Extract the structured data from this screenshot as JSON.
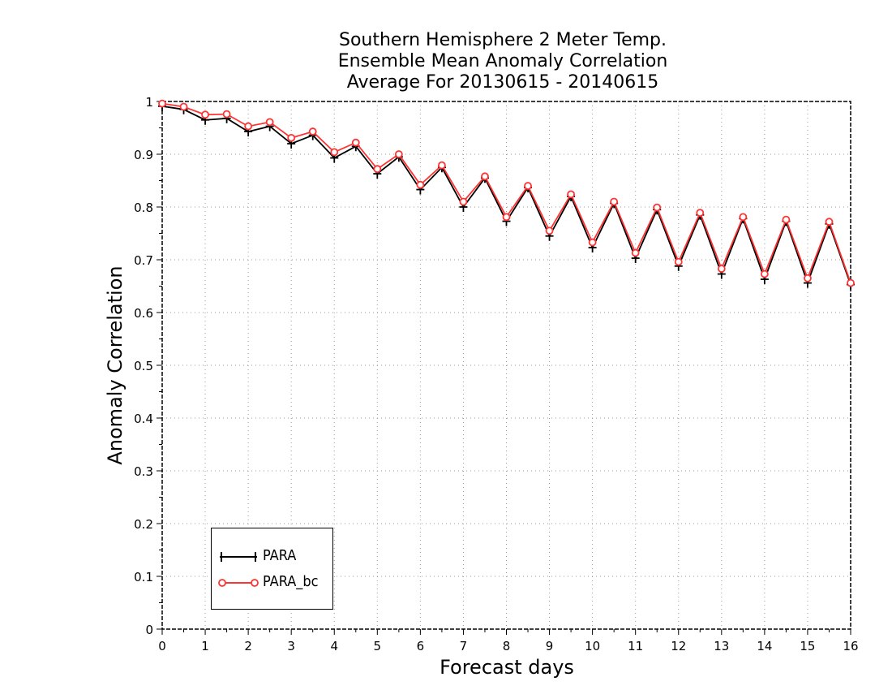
{
  "chart_data": {
    "type": "line",
    "title_lines": [
      "Southern Hemisphere 2 Meter Temp.",
      "Ensemble Mean Anomaly Correlation",
      "Average For 20130615 - 20140615"
    ],
    "xlabel": "Forecast days",
    "ylabel": "Anomaly Correlation",
    "xlim": [
      0,
      16
    ],
    "ylim": [
      0,
      1
    ],
    "x_ticks": [
      "0",
      "1",
      "2",
      "3",
      "4",
      "5",
      "6",
      "7",
      "8",
      "9",
      "10",
      "11",
      "12",
      "13",
      "14",
      "15",
      "16"
    ],
    "y_ticks": [
      "0",
      "0.1",
      "0.2",
      "0.3",
      "0.4",
      "0.5",
      "0.6",
      "0.7",
      "0.8",
      "0.9",
      "1"
    ],
    "grid": true,
    "legend_position": "bottom-left",
    "x": [
      0,
      0.5,
      1,
      1.5,
      2,
      2.5,
      3,
      3.5,
      4,
      4.5,
      5,
      5.5,
      6,
      6.5,
      7,
      7.5,
      8,
      8.5,
      9,
      9.5,
      10,
      10.5,
      11,
      11.5,
      12,
      12.5,
      13,
      13.5,
      14,
      14.5,
      15,
      15.5,
      16
    ],
    "series": [
      {
        "name": "PARA",
        "color": "#000000",
        "marker": "plus",
        "values": [
          0.991,
          0.985,
          0.965,
          0.968,
          0.943,
          0.953,
          0.92,
          0.936,
          0.893,
          0.915,
          0.863,
          0.895,
          0.833,
          0.875,
          0.8,
          0.855,
          0.773,
          0.837,
          0.745,
          0.82,
          0.723,
          0.807,
          0.703,
          0.795,
          0.688,
          0.785,
          0.673,
          0.778,
          0.663,
          0.773,
          0.656,
          0.768,
          0.653
        ]
      },
      {
        "name": "PARA_bc",
        "color": "#ff3333",
        "marker": "circle",
        "values": [
          0.996,
          0.99,
          0.975,
          0.976,
          0.953,
          0.961,
          0.931,
          0.943,
          0.904,
          0.922,
          0.872,
          0.9,
          0.842,
          0.879,
          0.81,
          0.858,
          0.781,
          0.84,
          0.755,
          0.824,
          0.733,
          0.81,
          0.713,
          0.799,
          0.696,
          0.789,
          0.683,
          0.781,
          0.673,
          0.776,
          0.665,
          0.772,
          0.656
        ]
      }
    ]
  }
}
